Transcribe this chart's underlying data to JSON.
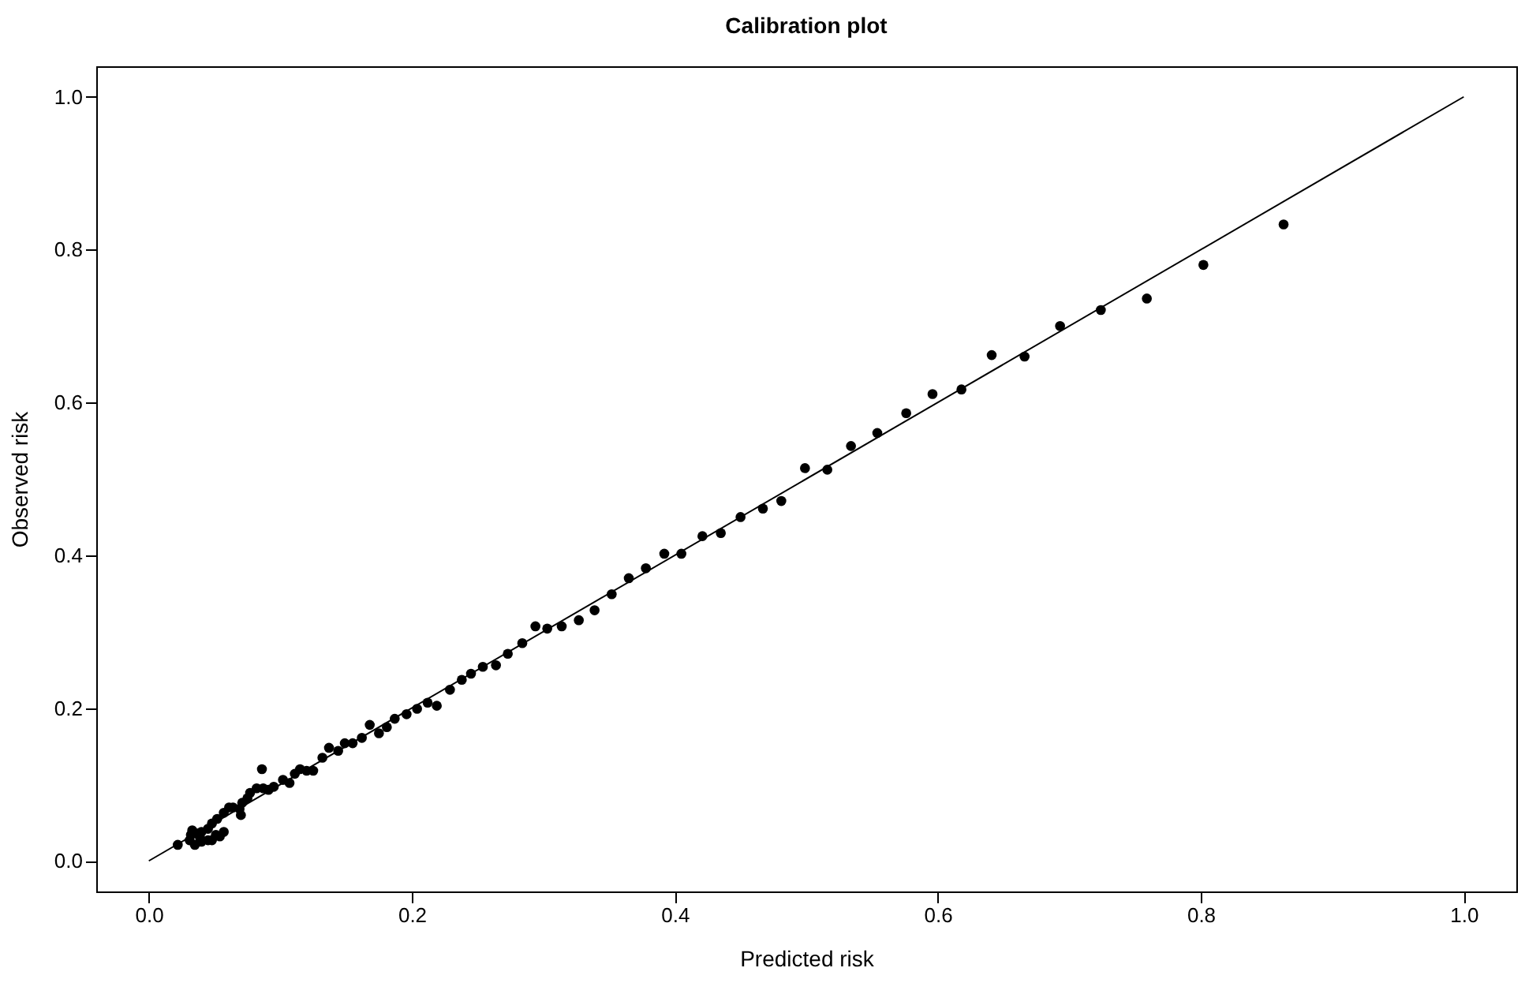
{
  "chart_data": {
    "type": "scatter",
    "title": "Calibration plot",
    "xlabel": "Predicted risk",
    "ylabel": "Observed risk",
    "xlim": [
      -0.04,
      1.04
    ],
    "ylim": [
      -0.04,
      1.04
    ],
    "xticks": [
      {
        "value": 0,
        "label": "0.0"
      },
      0.2,
      0.4,
      0.6,
      0.8,
      {
        "value": 1,
        "label": "1.0"
      }
    ],
    "yticks": [
      {
        "value": 0,
        "label": "0.0"
      },
      0.2,
      0.4,
      0.6,
      0.8,
      {
        "value": 1,
        "label": "1.0"
      }
    ],
    "series": [
      {
        "color": "#000000",
        "marker": "circle",
        "x": [
          0.022,
          0.031,
          0.032,
          0.033,
          0.035,
          0.036,
          0.039,
          0.04,
          0.04,
          0.045,
          0.045,
          0.048,
          0.048,
          0.051,
          0.052,
          0.054,
          0.057,
          0.057,
          0.061,
          0.064,
          0.069,
          0.07,
          0.071,
          0.075,
          0.077,
          0.082,
          0.086,
          0.087,
          0.091,
          0.095,
          0.102,
          0.107,
          0.111,
          0.115,
          0.12,
          0.125,
          0.132,
          0.137,
          0.144,
          0.149,
          0.155,
          0.162,
          0.168,
          0.175,
          0.181,
          0.187,
          0.196,
          0.204,
          0.212,
          0.219,
          0.229,
          0.238,
          0.245,
          0.254,
          0.264,
          0.273,
          0.284,
          0.294,
          0.303,
          0.314,
          0.327,
          0.339,
          0.352,
          0.365,
          0.378,
          0.392,
          0.405,
          0.421,
          0.435,
          0.45,
          0.467,
          0.481,
          0.499,
          0.516,
          0.534,
          0.554,
          0.576,
          0.596,
          0.618,
          0.641,
          0.666,
          0.693,
          0.724,
          0.759,
          0.802,
          0.863
        ],
        "values": [
          0.021,
          0.027,
          0.034,
          0.04,
          0.021,
          0.036,
          0.03,
          0.025,
          0.038,
          0.027,
          0.042,
          0.027,
          0.049,
          0.034,
          0.055,
          0.032,
          0.038,
          0.063,
          0.07,
          0.07,
          0.068,
          0.06,
          0.076,
          0.082,
          0.089,
          0.095,
          0.12,
          0.095,
          0.093,
          0.097,
          0.106,
          0.102,
          0.114,
          0.12,
          0.118,
          0.118,
          0.135,
          0.148,
          0.144,
          0.154,
          0.154,
          0.161,
          0.178,
          0.167,
          0.175,
          0.186,
          0.192,
          0.199,
          0.207,
          0.203,
          0.224,
          0.237,
          0.245,
          0.254,
          0.256,
          0.271,
          0.285,
          0.307,
          0.304,
          0.307,
          0.315,
          0.328,
          0.349,
          0.37,
          0.383,
          0.402,
          0.402,
          0.425,
          0.429,
          0.45,
          0.461,
          0.471,
          0.514,
          0.512,
          0.543,
          0.56,
          0.586,
          0.611,
          0.617,
          0.662,
          0.66,
          0.7,
          0.721,
          0.736,
          0.78,
          0.833
        ]
      },
      {
        "type": "line",
        "color": "#000000",
        "line_style": "solid",
        "x": [
          0,
          1
        ],
        "values": [
          0,
          1
        ]
      }
    ]
  }
}
